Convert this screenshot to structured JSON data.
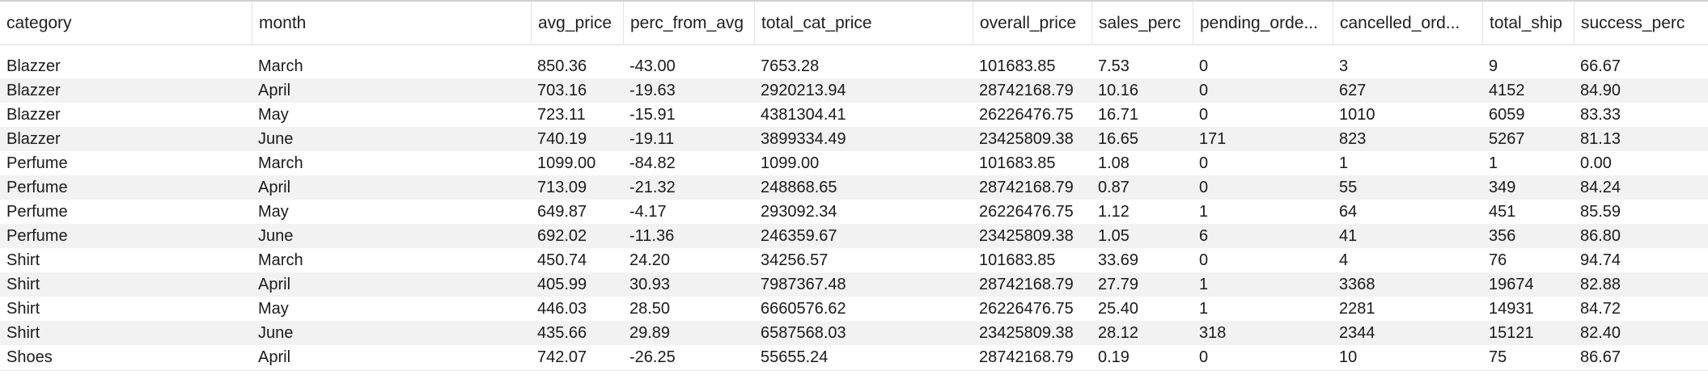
{
  "table": {
    "columns": [
      "category",
      "month",
      "avg_price",
      "perc_from_avg",
      "total_cat_price",
      "overall_price",
      "sales_perc",
      "pending_orde...",
      "cancelled_ord...",
      "total_ship",
      "success_perc"
    ],
    "rows": [
      [
        "Blazzer",
        "March",
        "850.36",
        "-43.00",
        "7653.28",
        "101683.85",
        "7.53",
        "0",
        "3",
        "9",
        "66.67"
      ],
      [
        "Blazzer",
        "April",
        "703.16",
        "-19.63",
        "2920213.94",
        "28742168.79",
        "10.16",
        "0",
        "627",
        "4152",
        "84.90"
      ],
      [
        "Blazzer",
        "May",
        "723.11",
        "-15.91",
        "4381304.41",
        "26226476.75",
        "16.71",
        "0",
        "1010",
        "6059",
        "83.33"
      ],
      [
        "Blazzer",
        "June",
        "740.19",
        "-19.11",
        "3899334.49",
        "23425809.38",
        "16.65",
        "171",
        "823",
        "5267",
        "81.13"
      ],
      [
        "Perfume",
        "March",
        "1099.00",
        "-84.82",
        "1099.00",
        "101683.85",
        "1.08",
        "0",
        "1",
        "1",
        "0.00"
      ],
      [
        "Perfume",
        "April",
        "713.09",
        "-21.32",
        "248868.65",
        "28742168.79",
        "0.87",
        "0",
        "55",
        "349",
        "84.24"
      ],
      [
        "Perfume",
        "May",
        "649.87",
        "-4.17",
        "293092.34",
        "26226476.75",
        "1.12",
        "1",
        "64",
        "451",
        "85.59"
      ],
      [
        "Perfume",
        "June",
        "692.02",
        "-11.36",
        "246359.67",
        "23425809.38",
        "1.05",
        "6",
        "41",
        "356",
        "86.80"
      ],
      [
        "Shirt",
        "March",
        "450.74",
        "24.20",
        "34256.57",
        "101683.85",
        "33.69",
        "0",
        "4",
        "76",
        "94.74"
      ],
      [
        "Shirt",
        "April",
        "405.99",
        "30.93",
        "7987367.48",
        "28742168.79",
        "27.79",
        "1",
        "3368",
        "19674",
        "82.88"
      ],
      [
        "Shirt",
        "May",
        "446.03",
        "28.50",
        "6660576.62",
        "26226476.75",
        "25.40",
        "1",
        "2281",
        "14931",
        "84.72"
      ],
      [
        "Shirt",
        "June",
        "435.66",
        "29.89",
        "6587568.03",
        "23425809.38",
        "28.12",
        "318",
        "2344",
        "15121",
        "82.40"
      ],
      [
        "Shoes",
        "April",
        "742.07",
        "-26.25",
        "55655.24",
        "28742168.79",
        "0.19",
        "0",
        "10",
        "75",
        "86.67"
      ]
    ]
  }
}
